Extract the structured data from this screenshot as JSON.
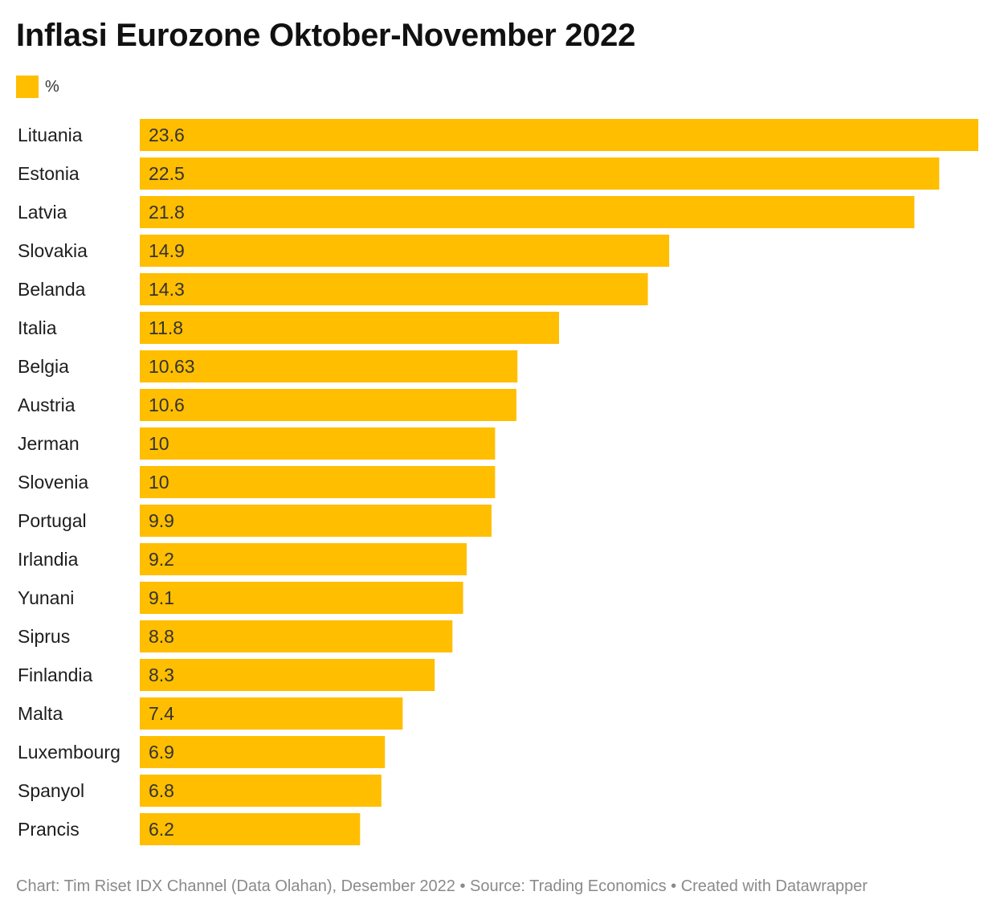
{
  "chart_data": {
    "type": "bar",
    "orientation": "horizontal",
    "title": "Inflasi Eurozone Oktober-November 2022",
    "legend": [
      {
        "name": "%",
        "color": "#ffbe00"
      }
    ],
    "categories": [
      "Lituania",
      "Estonia",
      "Latvia",
      "Slovakia",
      "Belanda",
      "Italia",
      "Belgia",
      "Austria",
      "Jerman",
      "Slovenia",
      "Portugal",
      "Irlandia",
      "Yunani",
      "Siprus",
      "Finlandia",
      "Malta",
      "Luxembourg",
      "Spanyol",
      "Prancis"
    ],
    "series": [
      {
        "name": "%",
        "values": [
          23.6,
          22.5,
          21.8,
          14.9,
          14.3,
          11.8,
          10.63,
          10.6,
          10,
          10,
          9.9,
          9.2,
          9.1,
          8.8,
          8.3,
          7.4,
          6.9,
          6.8,
          6.2
        ],
        "labels": [
          "23.6",
          "22.5",
          "21.8",
          "14.9",
          "14.3",
          "11.8",
          "10.63",
          "10.6",
          "10",
          "10",
          "9.9",
          "9.2",
          "9.1",
          "8.8",
          "8.3",
          "7.4",
          "6.9",
          "6.8",
          "6.2"
        ]
      }
    ],
    "xlim": [
      0,
      23.6
    ],
    "grid": false,
    "legend_position": "top-left",
    "bar_color": "#ffbe00"
  },
  "footer": "Chart: Tim Riset IDX Channel (Data Olahan), Desember 2022 • Source: Trading Economics • Created with Datawrapper"
}
